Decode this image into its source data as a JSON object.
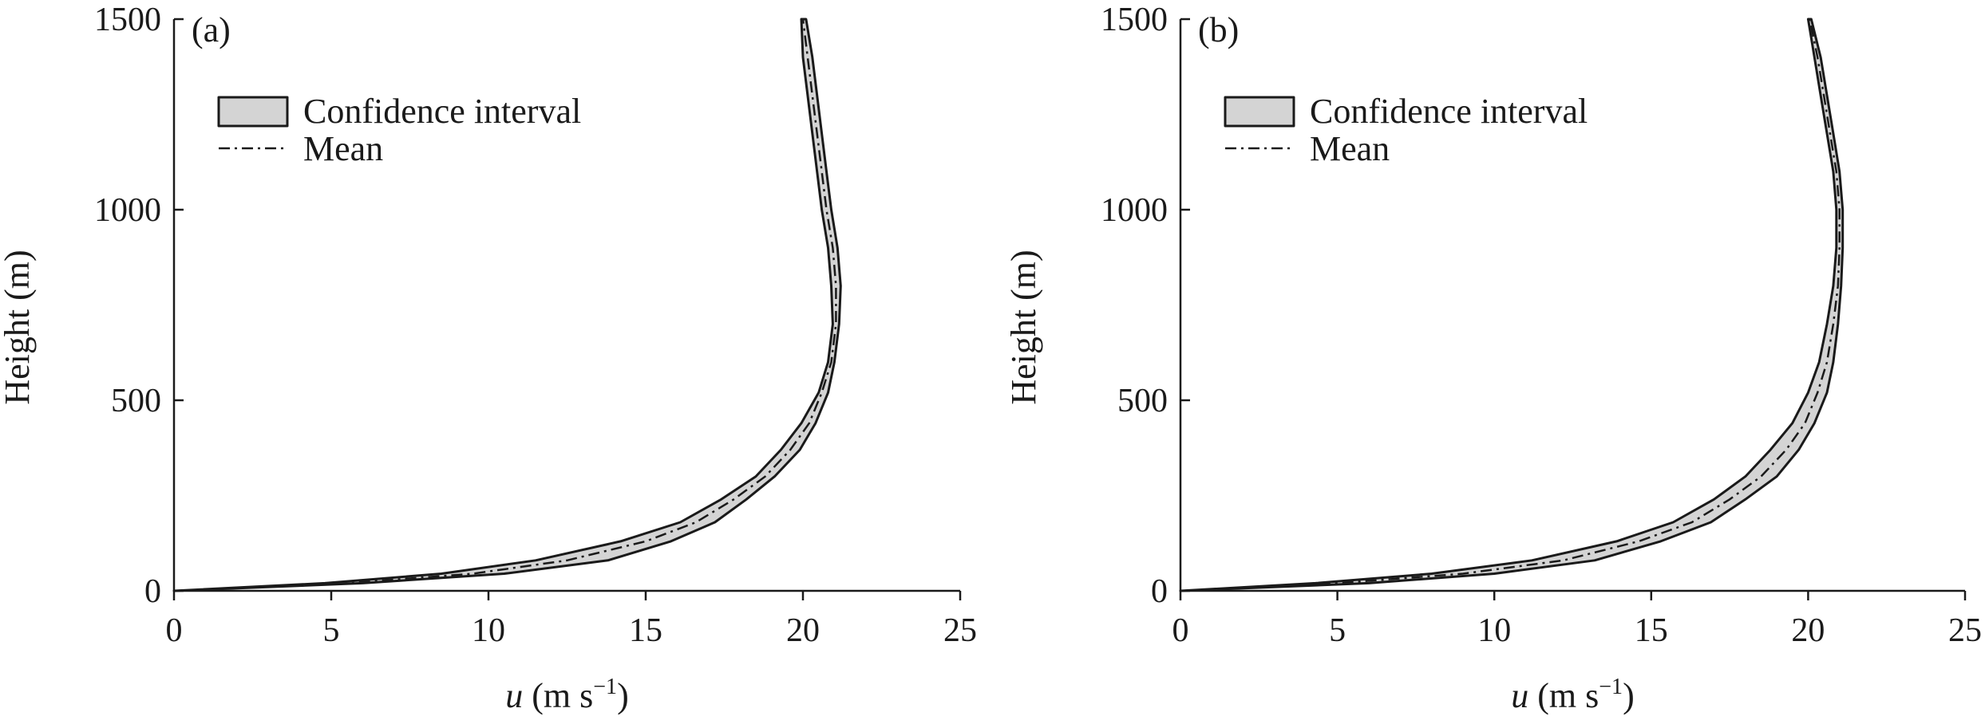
{
  "chart_data": [
    {
      "type": "area",
      "panel_label": "(a)",
      "xlabel_var": "u",
      "xlabel_rest": " (m s",
      "xlabel_sup": "−1",
      "xlabel_close": ")",
      "ylabel": "Height (m)",
      "xlim": [
        0,
        25
      ],
      "ylim": [
        0,
        1500
      ],
      "xticks": [
        0,
        5,
        10,
        15,
        20,
        25
      ],
      "yticks": [
        0,
        500,
        1000,
        1500
      ],
      "legend": {
        "position": "top-left",
        "band_label": "Confidence interval",
        "mean_label": "Mean"
      },
      "series": [
        {
          "name": "Mean",
          "x": [
            0,
            5.5,
            9.5,
            12.5,
            15,
            16.6,
            17.8,
            18.8,
            19.6,
            20.2,
            20.6,
            20.9,
            21.05,
            21.05,
            20.95,
            20.75,
            20.6,
            20.45,
            20.3,
            20.15,
            20.0
          ],
          "y": [
            0,
            20,
            45,
            80,
            130,
            180,
            240,
            300,
            370,
            440,
            520,
            600,
            700,
            800,
            900,
            1000,
            1100,
            1200,
            1300,
            1400,
            1500
          ]
        },
        {
          "name": "Confidence interval",
          "lower_x": [
            0,
            6,
            10.5,
            13.8,
            15.8,
            17.2,
            18.2,
            19.1,
            19.9,
            20.4,
            20.8,
            21.0,
            21.15,
            21.2,
            21.1,
            20.9,
            20.75,
            20.6,
            20.45,
            20.3,
            20.1
          ],
          "upper_x": [
            0,
            4.8,
            8.5,
            11.5,
            14.2,
            16.1,
            17.4,
            18.5,
            19.3,
            19.95,
            20.5,
            20.8,
            20.95,
            20.9,
            20.8,
            20.6,
            20.45,
            20.3,
            20.15,
            20.0,
            19.95
          ],
          "y": [
            0,
            20,
            45,
            80,
            130,
            180,
            240,
            300,
            370,
            440,
            520,
            600,
            700,
            800,
            900,
            1000,
            1100,
            1200,
            1300,
            1400,
            1500
          ]
        }
      ]
    },
    {
      "type": "area",
      "panel_label": "(b)",
      "xlabel_var": "u",
      "xlabel_rest": " (m s",
      "xlabel_sup": "−1",
      "xlabel_close": ")",
      "ylabel": "Height (m)",
      "xlim": [
        0,
        25
      ],
      "ylim": [
        0,
        1500
      ],
      "xticks": [
        0,
        5,
        10,
        15,
        20,
        25
      ],
      "yticks": [
        0,
        500,
        1000,
        1500
      ],
      "legend": {
        "position": "top-left",
        "band_label": "Confidence interval",
        "mean_label": "Mean"
      },
      "series": [
        {
          "name": "Mean",
          "x": [
            0,
            5,
            9,
            12.2,
            14.6,
            16.3,
            17.5,
            18.5,
            19.3,
            19.9,
            20.3,
            20.6,
            20.8,
            20.95,
            21.0,
            21.0,
            20.9,
            20.7,
            20.5,
            20.3,
            20.05
          ],
          "y": [
            0,
            20,
            45,
            80,
            130,
            180,
            240,
            300,
            370,
            440,
            520,
            600,
            700,
            800,
            900,
            1000,
            1100,
            1200,
            1300,
            1400,
            1500
          ]
        },
        {
          "name": "Confidence interval",
          "lower_x": [
            0,
            6,
            10,
            13.2,
            15.3,
            16.9,
            18.0,
            19.0,
            19.7,
            20.2,
            20.6,
            20.8,
            20.95,
            21.05,
            21.1,
            21.1,
            21.0,
            20.8,
            20.6,
            20.4,
            20.1
          ],
          "upper_x": [
            0,
            4.3,
            8.0,
            11.2,
            13.9,
            15.7,
            17.0,
            18.0,
            18.8,
            19.5,
            20.0,
            20.35,
            20.6,
            20.8,
            20.9,
            20.9,
            20.8,
            20.6,
            20.4,
            20.2,
            20.0
          ],
          "y": [
            0,
            20,
            45,
            80,
            130,
            180,
            240,
            300,
            370,
            440,
            520,
            600,
            700,
            800,
            900,
            1000,
            1100,
            1200,
            1300,
            1400,
            1500
          ]
        }
      ]
    }
  ]
}
